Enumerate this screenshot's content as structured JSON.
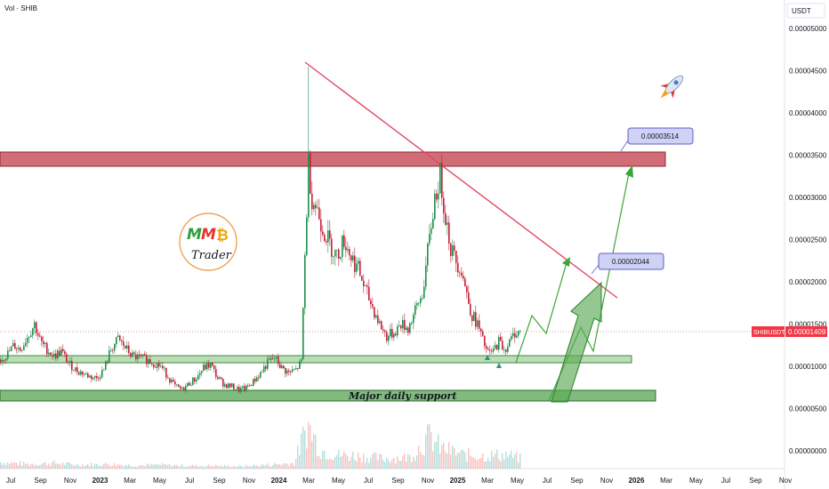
{
  "header": {
    "volume_label": "Vol · SHIB",
    "currency_label": "USDT"
  },
  "chart_data": {
    "type": "candlestick",
    "symbol": "SHIBUSDT",
    "current_price": "0.00001409",
    "y_ticks": [
      "0.00005000",
      "0.00004500",
      "0.00004000",
      "0.00003500",
      "0.00003000",
      "0.00002500",
      "0.00002000",
      "0.00001500",
      "0.00001000",
      "0.00000500",
      "0.00000000"
    ],
    "y_tick_values": [
      5e-05,
      4.5e-05,
      4e-05,
      3.5e-05,
      3e-05,
      2.5e-05,
      2e-05,
      1.5e-05,
      1e-05,
      5e-06,
      0
    ],
    "ylim": [
      0,
      5e-05
    ],
    "x_ticks": [
      "Jul",
      "Sep",
      "Nov",
      "2023",
      "Mar",
      "May",
      "Jul",
      "Sep",
      "Nov",
      "2024",
      "Mar",
      "May",
      "Jul",
      "Sep",
      "Nov",
      "2025",
      "Mar",
      "May",
      "Jul",
      "Sep",
      "Nov",
      "2026",
      "Mar",
      "May",
      "Jul",
      "Sep",
      "Nov"
    ],
    "series": [
      {
        "name": "SHIBUSDT",
        "points": [
          [
            0,
            1.08e-05
          ],
          [
            8,
            1.15e-05
          ],
          [
            15,
            1.25e-05
          ],
          [
            22,
            1.2e-05
          ],
          [
            30,
            1.35e-05
          ],
          [
            38,
            1.5e-05
          ],
          [
            45,
            1.28e-05
          ],
          [
            52,
            1.2e-05
          ],
          [
            60,
            1.12e-05
          ],
          [
            68,
            1.18e-05
          ],
          [
            76,
            1.04e-05
          ],
          [
            84,
            9.6e-06
          ],
          [
            92,
            9.2e-06
          ],
          [
            100,
            8.8e-06
          ],
          [
            108,
            8.6e-06
          ],
          [
            116,
            9.6e-06
          ],
          [
            124,
            1.2e-05
          ],
          [
            132,
            1.32e-05
          ],
          [
            140,
            1.22e-05
          ],
          [
            148,
            1.12e-05
          ],
          [
            156,
            1.1e-05
          ],
          [
            164,
            1.08e-05
          ],
          [
            172,
            1.04e-05
          ],
          [
            180,
            1e-05
          ],
          [
            188,
            8.8e-06
          ],
          [
            196,
            7.6e-06
          ],
          [
            204,
            7.2e-06
          ],
          [
            212,
            8e-06
          ],
          [
            220,
            8.6e-06
          ],
          [
            228,
            9.8e-06
          ],
          [
            236,
            1.02e-05
          ],
          [
            244,
            8.6e-06
          ],
          [
            252,
            7.8e-06
          ],
          [
            260,
            7.6e-06
          ],
          [
            268,
            7.2e-06
          ],
          [
            276,
            7.4e-06
          ],
          [
            284,
            8.2e-06
          ],
          [
            292,
            9.2e-06
          ],
          [
            300,
            1.04e-05
          ],
          [
            308,
            1.1e-05
          ],
          [
            316,
            9.8e-06
          ],
          [
            324,
            9.2e-06
          ],
          [
            332,
            9.6e-06
          ],
          [
            338,
            1.05e-05
          ],
          [
            342,
            2.3e-05
          ],
          [
            346,
            3.4e-05
          ],
          [
            350,
            3e-05
          ],
          [
            356,
            2.85e-05
          ],
          [
            362,
            2.65e-05
          ],
          [
            370,
            2.45e-05
          ],
          [
            378,
            2.3e-05
          ],
          [
            386,
            2.5e-05
          ],
          [
            394,
            2.3e-05
          ],
          [
            402,
            2.15e-05
          ],
          [
            410,
            1.9e-05
          ],
          [
            418,
            1.7e-05
          ],
          [
            426,
            1.5e-05
          ],
          [
            434,
            1.35e-05
          ],
          [
            442,
            1.4e-05
          ],
          [
            450,
            1.5e-05
          ],
          [
            458,
            1.45e-05
          ],
          [
            466,
            1.65e-05
          ],
          [
            474,
            1.85e-05
          ],
          [
            482,
            2.5e-05
          ],
          [
            488,
            3e-05
          ],
          [
            494,
            3.25e-05
          ],
          [
            500,
            2.8e-05
          ],
          [
            506,
            2.4e-05
          ],
          [
            512,
            2.25e-05
          ],
          [
            518,
            2.15e-05
          ],
          [
            524,
            1.85e-05
          ],
          [
            530,
            1.6e-05
          ],
          [
            536,
            1.5e-05
          ],
          [
            542,
            1.3e-05
          ],
          [
            548,
            1.15e-05
          ],
          [
            554,
            1.18e-05
          ],
          [
            560,
            1.3e-05
          ],
          [
            566,
            1.2e-05
          ],
          [
            572,
            1.28e-05
          ],
          [
            578,
            1.4e-05
          ],
          [
            584,
            1.41e-05
          ]
        ]
      }
    ],
    "volume": [
      [
        0,
        0.14
      ],
      [
        30,
        0.1
      ],
      [
        60,
        0.12
      ],
      [
        90,
        0.08
      ],
      [
        120,
        0.1
      ],
      [
        150,
        0.07
      ],
      [
        180,
        0.08
      ],
      [
        210,
        0.06
      ],
      [
        240,
        0.06
      ],
      [
        270,
        0.05
      ],
      [
        300,
        0.08
      ],
      [
        330,
        0.12
      ],
      [
        345,
        0.95
      ],
      [
        360,
        0.4
      ],
      [
        380,
        0.3
      ],
      [
        400,
        0.28
      ],
      [
        430,
        0.22
      ],
      [
        460,
        0.25
      ],
      [
        482,
        0.7
      ],
      [
        495,
        0.45
      ],
      [
        520,
        0.3
      ],
      [
        545,
        0.28
      ],
      [
        570,
        0.3
      ],
      [
        584,
        0.22
      ]
    ],
    "annotations": [
      {
        "label": "0.00003514",
        "value": 3.514e-05
      },
      {
        "label": "0.00002044",
        "value": 2.044e-05
      }
    ],
    "support_label": "Major daily support",
    "logo": {
      "letters": [
        "M",
        "M",
        "₿"
      ],
      "word": "Trader",
      "colors": [
        "#2e9e3f",
        "#e5372c",
        "#f0a30a"
      ]
    }
  }
}
